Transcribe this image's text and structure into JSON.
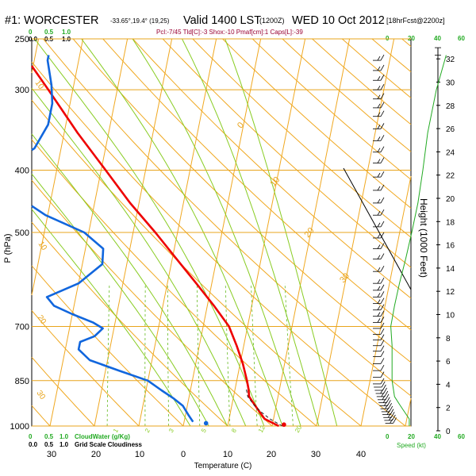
{
  "header": {
    "station": "#1: WORCESTER",
    "coords": "-33.65°,19.4° (19,25)",
    "valid": "Valid 1400 LST",
    "utc": "(1200Z)",
    "date": "WED 10 Oct 2012",
    "forecast": "[18hrFcst@2200z]",
    "subline": "Pcl:-7/45 Tld[C]:-3 Shox:-10 Pmaf[cm]:1 Caps[L]:-39"
  },
  "cloud_scale": {
    "top_ticks": [
      "0.0",
      "0.5",
      "1.0"
    ],
    "bottom_ticks": [
      "0.0",
      "0.5",
      "1.0"
    ],
    "top_green": [
      "0",
      "0.5",
      "1.0"
    ],
    "bottom_green": [
      "0",
      "0.5",
      "1.0"
    ],
    "water_label": "CloudWater (g/Kg)",
    "grid_label": "Grid Scale Cloudiness"
  },
  "speed_scale": {
    "ticks_top": [
      "0",
      "20",
      "40",
      "60"
    ],
    "ticks_bottom": [
      "0",
      "20",
      "40",
      "60"
    ],
    "label": "Speed (kt)"
  },
  "chart_data": {
    "type": "line",
    "subtype": "skew-T log-P sounding",
    "xlabel": "Temperature (C)",
    "ylabel": "P (hPa)",
    "y2label": "Height (1000 Feet)",
    "xlim": [
      -30,
      45
    ],
    "ylim": [
      1000,
      250
    ],
    "y_log_scale": true,
    "x_ticks": [
      "30",
      "20",
      "10",
      "0",
      "10",
      "20",
      "30",
      "40"
    ],
    "pressure_ticks": [
      {
        "p": 250,
        "label": "250"
      },
      {
        "p": 300,
        "label": "300"
      },
      {
        "p": 400,
        "label": "400"
      },
      {
        "p": 500,
        "label": "500"
      },
      {
        "p": 700,
        "label": "700"
      },
      {
        "p": 850,
        "label": "850"
      },
      {
        "p": 1000,
        "label": "1000"
      }
    ],
    "height_ticks": [
      {
        "kft": 0,
        "label": "0"
      },
      {
        "kft": 2,
        "label": "2"
      },
      {
        "kft": 4,
        "label": "4"
      },
      {
        "kft": 6,
        "label": "6"
      },
      {
        "kft": 8,
        "label": "8"
      },
      {
        "kft": 10,
        "label": "10"
      },
      {
        "kft": 12,
        "label": "12"
      },
      {
        "kft": 14,
        "label": "14"
      },
      {
        "kft": 16,
        "label": "16"
      },
      {
        "kft": 18,
        "label": "18"
      },
      {
        "kft": 20,
        "label": "20"
      },
      {
        "kft": 22,
        "label": "22"
      },
      {
        "kft": 24,
        "label": "24"
      },
      {
        "kft": 26,
        "label": "26"
      },
      {
        "kft": 28,
        "label": "28"
      },
      {
        "kft": 30,
        "label": "30"
      },
      {
        "kft": 32,
        "label": "32"
      }
    ],
    "isotherm_labels": [
      {
        "t": 0,
        "p": 345,
        "label": "0"
      },
      {
        "t": 10,
        "p": 425,
        "label": "10"
      },
      {
        "t": 20,
        "p": 510,
        "label": "20"
      },
      {
        "t": 30,
        "p": 600,
        "label": "30"
      }
    ],
    "theta_labels": [
      {
        "x": 44,
        "y": 104,
        "label": "10"
      },
      {
        "x": 48,
        "y": 307,
        "label": "10"
      },
      {
        "x": 47,
        "y": 400,
        "label": "20"
      },
      {
        "x": 46,
        "y": 495,
        "label": "30"
      }
    ],
    "mixing_labels": [
      {
        "x": 147,
        "y": 546,
        "label": "1"
      },
      {
        "x": 187,
        "y": 546,
        "label": "2"
      },
      {
        "x": 217,
        "y": 546,
        "label": "3"
      },
      {
        "x": 258,
        "y": 546,
        "label": "5"
      },
      {
        "x": 296,
        "y": 546,
        "label": "8"
      },
      {
        "x": 330,
        "y": 546,
        "label": "12"
      },
      {
        "x": 376,
        "y": 546,
        "label": "20"
      }
    ],
    "series": [
      {
        "name": "Temperature",
        "color": "#ee0000",
        "points": [
          {
            "p": 1000,
            "t": 21.5
          },
          {
            "p": 975,
            "t": 18.0
          },
          {
            "p": 950,
            "t": 16.5
          },
          {
            "p": 925,
            "t": 15.0
          },
          {
            "p": 900,
            "t": 13.5
          },
          {
            "p": 875,
            "t": 13.0
          },
          {
            "p": 850,
            "t": 12.3
          },
          {
            "p": 800,
            "t": 10.6
          },
          {
            "p": 750,
            "t": 8.4
          },
          {
            "p": 700,
            "t": 5.8
          },
          {
            "p": 650,
            "t": 1.5
          },
          {
            "p": 600,
            "t": -3.5
          },
          {
            "p": 550,
            "t": -9.0
          },
          {
            "p": 500,
            "t": -15.0
          },
          {
            "p": 450,
            "t": -22.0
          },
          {
            "p": 400,
            "t": -29.0
          },
          {
            "p": 350,
            "t": -37.0
          },
          {
            "p": 300,
            "t": -45.5
          },
          {
            "p": 265,
            "t": -52.5
          }
        ]
      },
      {
        "name": "Dewpoint",
        "color": "#1166dd",
        "points": [
          {
            "p": 985,
            "t": 2.0
          },
          {
            "p": 960,
            "t": 0.6
          },
          {
            "p": 930,
            "t": -1.0
          },
          {
            "p": 905,
            "t": -3.5
          },
          {
            "p": 880,
            "t": -6.5
          },
          {
            "p": 850,
            "t": -10.0
          },
          {
            "p": 820,
            "t": -17.0
          },
          {
            "p": 790,
            "t": -24.0
          },
          {
            "p": 760,
            "t": -27.0
          },
          {
            "p": 740,
            "t": -27.0
          },
          {
            "p": 725,
            "t": -24.0
          },
          {
            "p": 705,
            "t": -22.5
          },
          {
            "p": 690,
            "t": -25.0
          },
          {
            "p": 670,
            "t": -30.0
          },
          {
            "p": 650,
            "t": -34.5
          },
          {
            "p": 630,
            "t": -36.5
          },
          {
            "p": 600,
            "t": -30.0
          },
          {
            "p": 560,
            "t": -25.5
          },
          {
            "p": 530,
            "t": -26.0
          },
          {
            "p": 500,
            "t": -31.0
          },
          {
            "p": 470,
            "t": -40.5
          },
          {
            "p": 430,
            "t": -50.0
          },
          {
            "p": 400,
            "t": -53.0
          },
          {
            "p": 370,
            "t": -46.0
          },
          {
            "p": 340,
            "t": -44.0
          },
          {
            "p": 315,
            "t": -44.0
          },
          {
            "p": 295,
            "t": -45.0
          },
          {
            "p": 270,
            "t": -47.0
          },
          {
            "p": 265,
            "t": -47.0
          }
        ]
      },
      {
        "name": "Parcel",
        "color": "#222222",
        "dashed": true,
        "points": [
          {
            "p": 1000,
            "t": 22.3
          },
          {
            "p": 975,
            "t": 19.2
          },
          {
            "p": 950,
            "t": 16.8
          },
          {
            "p": 925,
            "t": 14.8
          },
          {
            "p": 900,
            "t": 13.2
          },
          {
            "p": 875,
            "t": 12.5
          }
        ]
      }
    ],
    "surface_temp_marker": {
      "p": 995,
      "t": 22.6,
      "color": "#ee0000"
    },
    "surface_dew_marker": {
      "p": 990,
      "t": 5.0,
      "color": "#1166dd"
    },
    "cloud_base_p": 850,
    "wind_speed_kt": [
      {
        "p": 1000,
        "s": 18
      },
      {
        "p": 975,
        "s": 18
      },
      {
        "p": 950,
        "s": 14
      },
      {
        "p": 925,
        "s": 10
      },
      {
        "p": 900,
        "s": 6
      },
      {
        "p": 875,
        "s": 5
      },
      {
        "p": 850,
        "s": 4
      },
      {
        "p": 800,
        "s": 4
      },
      {
        "p": 750,
        "s": 4
      },
      {
        "p": 700,
        "s": 3
      },
      {
        "p": 650,
        "s": 6
      },
      {
        "p": 600,
        "s": 10
      },
      {
        "p": 550,
        "s": 15
      },
      {
        "p": 500,
        "s": 20
      },
      {
        "p": 450,
        "s": 25
      },
      {
        "p": 400,
        "s": 29
      },
      {
        "p": 350,
        "s": 33
      },
      {
        "p": 300,
        "s": 40
      },
      {
        "p": 265,
        "s": 48
      }
    ],
    "wind_barbs_p": [
      270,
      280,
      290,
      300,
      310,
      320,
      330,
      345,
      360,
      375,
      390,
      410,
      430,
      450,
      470,
      490,
      510,
      530,
      550,
      575,
      600,
      615,
      630,
      645,
      660,
      675,
      690,
      705,
      720,
      735,
      750,
      765,
      780,
      800,
      820,
      840,
      860,
      870,
      880,
      890,
      900,
      910,
      920,
      930,
      940,
      950,
      960,
      970,
      980,
      990
    ]
  }
}
